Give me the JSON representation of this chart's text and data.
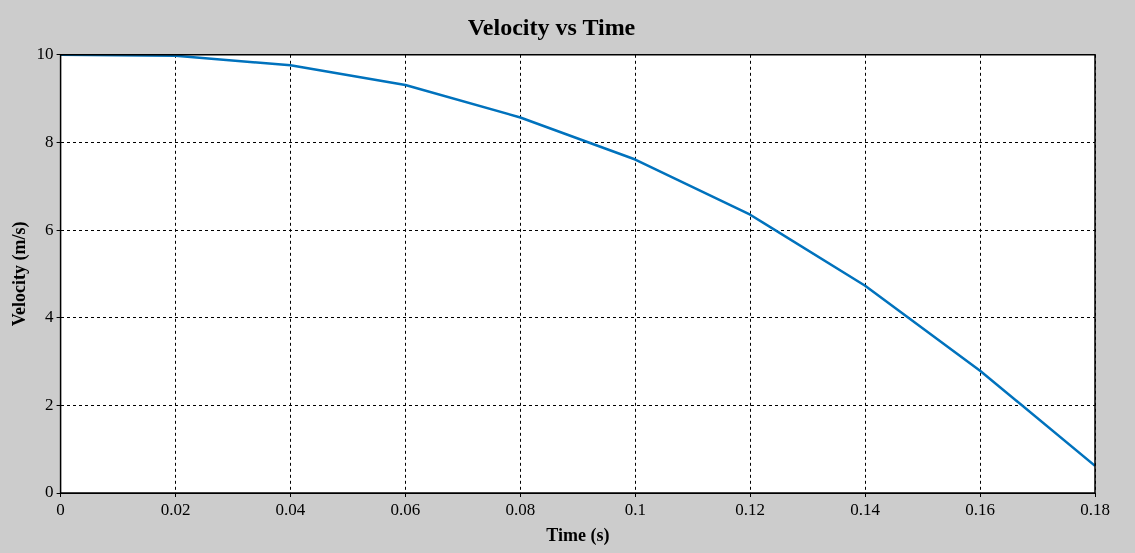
{
  "chart_data": {
    "type": "line",
    "title": "Velocity vs Time",
    "xlabel": "Time (s)",
    "ylabel": "Velocity (m/s)",
    "x": [
      0,
      0.02,
      0.04,
      0.06,
      0.08,
      0.1,
      0.12,
      0.14,
      0.16,
      0.18
    ],
    "series": [
      {
        "color": "#0072bd",
        "values": [
          10,
          9.98,
          9.76,
          9.31,
          8.57,
          7.61,
          6.35,
          4.73,
          2.79,
          0.62
        ]
      }
    ],
    "xlim": [
      0,
      0.18
    ],
    "xticks": [
      0,
      0.02,
      0.04,
      0.06,
      0.08,
      0.1,
      0.12,
      0.14,
      0.16,
      0.18
    ],
    "ylim": [
      0,
      10
    ],
    "yticks": [
      0,
      2,
      4,
      6,
      8,
      10
    ],
    "grid": true,
    "marker": "none",
    "line_style": "solid",
    "legend": false
  }
}
